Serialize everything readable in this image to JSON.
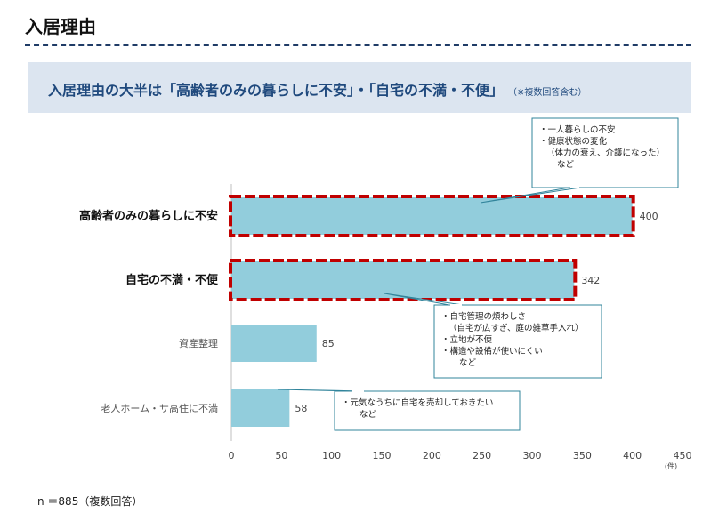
{
  "page": {
    "title": "入居理由",
    "headline": "入居理由の大半は「高齢者のみの暮らしに不安」・「自宅の不満・不便」",
    "headline_note": "（※複数回答含む）",
    "footer": "n ＝885（複数回答）"
  },
  "chart_data": {
    "type": "bar",
    "orientation": "horizontal",
    "categories": [
      "高齢者のみの暮らしに不安",
      "自宅の不満・不便",
      "資産整理",
      "老人ホーム・サ高住に不満"
    ],
    "values": [
      400,
      342,
      85,
      58
    ],
    "highlighted": [
      true,
      true,
      false,
      false
    ],
    "xlim": [
      0,
      450
    ],
    "xticks": [
      "0",
      "50",
      "100",
      "150",
      "200",
      "250",
      "300",
      "350",
      "400",
      "450"
    ],
    "unit": "(件)",
    "bar_color": "#92cddc",
    "highlight_color": "#c00000",
    "annotations": [
      {
        "target": 0,
        "lines": [
          "・一人暮らしの不安",
          "・健康状態の変化",
          "（体力の衰え、介護になった）",
          "など"
        ]
      },
      {
        "target": 1,
        "lines": [
          "・自宅管理の煩わしさ",
          "（自宅が広すぎ、庭の雑草手入れ）",
          "・立地が不便",
          "・構造や設備が使いにくい",
          "など"
        ]
      },
      {
        "target": 2,
        "lines": [
          "・元気なうちに自宅を売却しておきたい",
          "など"
        ]
      }
    ]
  }
}
